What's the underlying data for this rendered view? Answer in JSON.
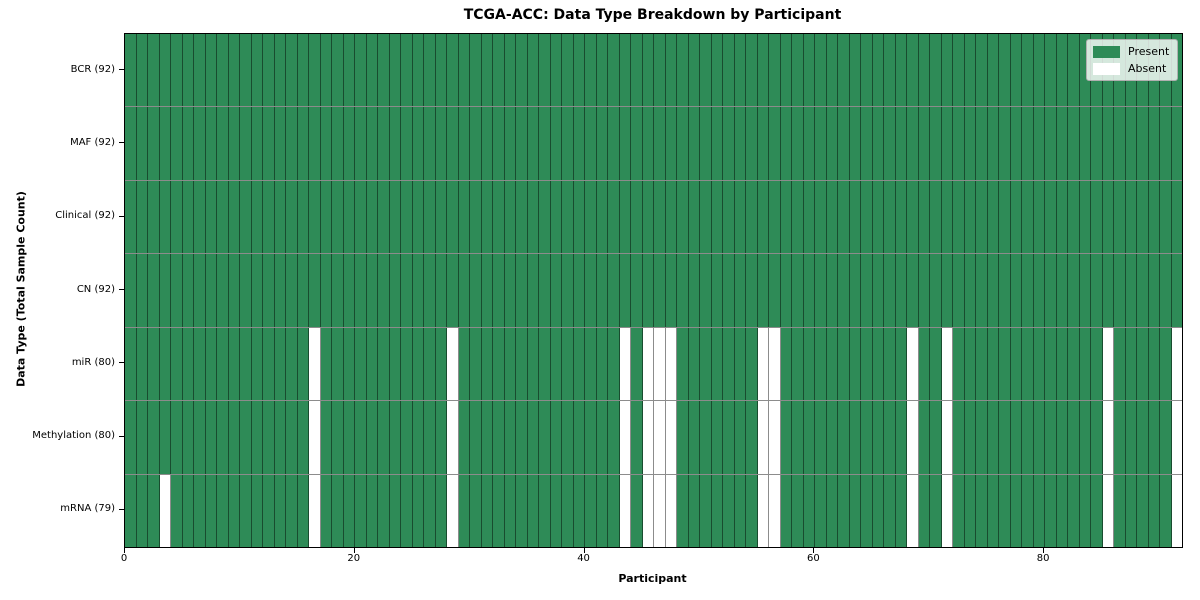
{
  "chart_data": {
    "type": "heatmap",
    "title": "TCGA-ACC: Data Type Breakdown by Participant",
    "xlabel": "Participant",
    "ylabel": "Data Type (Total Sample Count)",
    "n_participants": 92,
    "x_ticks": [
      0,
      20,
      40,
      60,
      80
    ],
    "grid": true,
    "legend_position": "upper right",
    "rows": [
      {
        "label": "BCR (92)",
        "data_type": "BCR",
        "present_count": 92,
        "absent_participants": []
      },
      {
        "label": "MAF (92)",
        "data_type": "MAF",
        "present_count": 92,
        "absent_participants": []
      },
      {
        "label": "Clinical (92)",
        "data_type": "Clinical",
        "present_count": 92,
        "absent_participants": []
      },
      {
        "label": "CN (92)",
        "data_type": "CN",
        "present_count": 92,
        "absent_participants": []
      },
      {
        "label": "miR (80)",
        "data_type": "miR",
        "present_count": 80,
        "absent_participants": [
          16,
          28,
          43,
          45,
          46,
          47,
          55,
          56,
          68,
          71,
          85,
          91
        ]
      },
      {
        "label": "Methylation (80)",
        "data_type": "Methylation",
        "present_count": 80,
        "absent_participants": [
          16,
          28,
          43,
          45,
          46,
          47,
          55,
          56,
          68,
          71,
          85,
          91
        ]
      },
      {
        "label": "mRNA (79)",
        "data_type": "mRNA",
        "present_count": 79,
        "absent_participants": [
          3,
          16,
          28,
          43,
          45,
          46,
          47,
          55,
          56,
          68,
          71,
          85,
          91
        ]
      }
    ],
    "legend": [
      {
        "label": "Present",
        "color": "#2e8b57"
      },
      {
        "label": "Absent",
        "color": "#ffffff"
      }
    ],
    "colors": {
      "present": "#2e8b57",
      "absent": "#ffffff",
      "cell_edge": "rgba(0,0,0,0.45)",
      "axis": "#000000"
    }
  }
}
